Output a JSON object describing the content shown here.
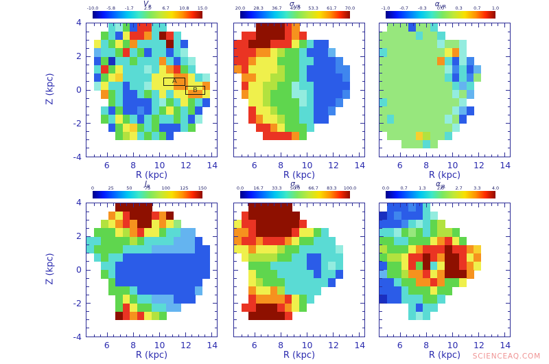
{
  "watermark": "SCIENCEAQ.COM",
  "colors": {
    "background": "#ffffff",
    "axis_frame": "#2c2c96",
    "axis_text": "#2a2aae",
    "colorbar_text": "#1c1c66",
    "box_outline": "#1a1a10",
    "watermark": "#ec8080"
  },
  "chart_data": {
    "type": "heatmap",
    "layout": "2 rows x 3 columns of binned R-Z maps, each with its own rainbow colorbar on top",
    "x_axis": {
      "label": "R (kpc)",
      "ticks": [
        6,
        8,
        10,
        12,
        14
      ],
      "range": [
        4.4,
        14.4
      ]
    },
    "y_axis": {
      "label": "Z (kpc)",
      "ticks": [
        4,
        2,
        0,
        -2,
        -4
      ],
      "range": [
        -4,
        4
      ]
    },
    "palette": {
      "0": "#1a2fc0",
      "1": "#2b5ce8",
      "2": "#3f86ee",
      "3": "#64b4f0",
      "4": "#5adbd4",
      "5": "#93ecdf",
      "6": "#97e77d",
      "7": "#5fd64e",
      "8": "#b2e23f",
      "9": "#eff04c",
      "a": "#f7cf2e",
      "b": "#f6921e",
      "c": "#ea3423",
      "d": "#8e1000",
      ".": "transparent"
    },
    "panels": [
      {
        "title": "V_R",
        "title_main": "V",
        "title_sub": "R",
        "colorbar_ticks": [
          "-10.0",
          "-5.8",
          "-1.7",
          "2.5",
          "6.7",
          "10.8",
          "15.0"
        ],
        "colorbar_range": [
          -10.0,
          15.0
        ],
        "boxes": [
          {
            "label": "A",
            "x": 0.59,
            "y": 0.408,
            "w": 0.17,
            "h": 0.063
          },
          {
            "label": "B",
            "x": 0.76,
            "y": 0.471,
            "w": 0.148,
            "h": 0.065
          }
        ],
        "grid": [
          "...4571cc44.......",
          "..7419ccb4dc4.....",
          ".94797b4444d41....",
          ".3447c47144145....",
          ".170447444b4145...",
          ".4c79444549bc74...",
          ".179a4444999bb945.",
          ".59441445999bb99b.",
          "..b74114749499bb9.",
          "...74111145749741.",
          "..41711214797471..",
          "..74974147447415..",
          "...179a74711147...",
          "....78947471......",
          "..................",
          ".................."
        ]
      },
      {
        "title": "σ_VR",
        "title_main": "σ",
        "title_sub": "VR",
        "colorbar_ticks": [
          "20.0",
          "28.3",
          "36.7",
          "45.0",
          "53.3",
          "61.7",
          "70.0"
        ],
        "colorbar_range": [
          20.0,
          70.0
        ],
        "boxes": [],
        "grid": [
          "...ddddcb.........",
          ".ccddddcbc........",
          "ccdddccc97411.....",
          "cccbb987741113....",
          "ccb999777441112...",
          "bc99998774111122..",
          ".bb9988774111112..",
          ".c99887754411111..",
          ".b99877755411112..",
          "..9987777541112...",
          "..c99877744112....",
          "..cb998774411.....",
          "...ccb97774.......",
          "....ccccb7........",
          "..................",
          ".................."
        ]
      },
      {
        "title": "α_VR",
        "title_main": "α",
        "title_sub": "VR",
        "colorbar_ticks": [
          "-1.0",
          "-0.7",
          "-0.3",
          "0.0",
          "0.3",
          "0.7",
          "1.0"
        ],
        "colorbar_range": [
          -1.0,
          1.0
        ],
        "boxes": [],
        "grid": [
          ".6661664..........",
          "666664664.........",
          "666666665665......",
          "4666666669b5......",
          "66666666b4152.....",
          "66666666652413....",
          "66666666641426....",
          "6666666666434.....",
          "6666666666563.....",
          "466666666665......",
          "6666666666531.....",
          "646666666561......",
          "66666666665.......",
          ".6666a8664........",
          "...66646..........",
          ".................."
        ]
      },
      {
        "title": "J_R",
        "title_main": "J",
        "title_sub": "R",
        "colorbar_ticks": [
          "0",
          "25",
          "50",
          "75",
          "100",
          "125",
          "150"
        ],
        "colorbar_range": [
          0,
          150
        ],
        "boxes": [],
        "grid": [
          "....ddddd.........",
          "...b9cdddcbd......",
          "..89bcbdd9b96.....",
          ".77798bc9974433...",
          "4477778744443331..",
          "47777444433333311.",
          ".4744111111111111.",
          "..441111111111111.",
          "..741111111111111.",
          "...7111111111111..",
          "...7774111111113..",
          "....79744333111...",
          "....7c9774433.....",
          "....dcbc987.......",
          "..................",
          ".................."
        ]
      },
      {
        "title": "σ_JR",
        "title_main": "σ",
        "title_sub": "JR",
        "colorbar_ticks": [
          "0.0",
          "16.7",
          "33.3",
          "50.0",
          "66.7",
          "83.3",
          "100.0"
        ],
        "colorbar_range": [
          0.0,
          100.0
        ],
        "boxes": [],
        "grid": [
          "..dddddd..........",
          ".cddddddd.........",
          "9ccddddddc........",
          "bbcdddddc9974.....",
          "bccbcccb977444....",
          "99b999877444445...",
          ".98888774411444...",
          "..7774444411454...",
          "..9777444441441...",
          "..987774444441....",
          "..b99b844444......",
          "..cbbbbc974.......",
          ".ccdddcb97........",
          "..dddddc..........",
          "..................",
          ".................."
        ]
      },
      {
        "title": "α_JR",
        "title_main": "α",
        "title_sub": "JR",
        "colorbar_ticks": [
          "0.0",
          "0.7",
          "1.3",
          "2.0",
          "2.7",
          "3.3",
          "4.0"
        ],
        "colorbar_range": [
          0.0,
          4.0
        ],
        "boxes": [],
        "grid": [
          ".111214...........",
          "01211145..........",
          "111245478.........",
          "44576747887.......",
          "77447779bc97......",
          "87779bcccdccba....",
          "7889ccdcbddc9b....",
          "1779c7d49ddcb9....",
          "3778bbc9bdddb.....",
          "11477bbcb779......",
          "1114777977........",
          "011444774.........",
          "....4144..........",
          "....454...........",
          "..................",
          ".................."
        ]
      }
    ]
  }
}
